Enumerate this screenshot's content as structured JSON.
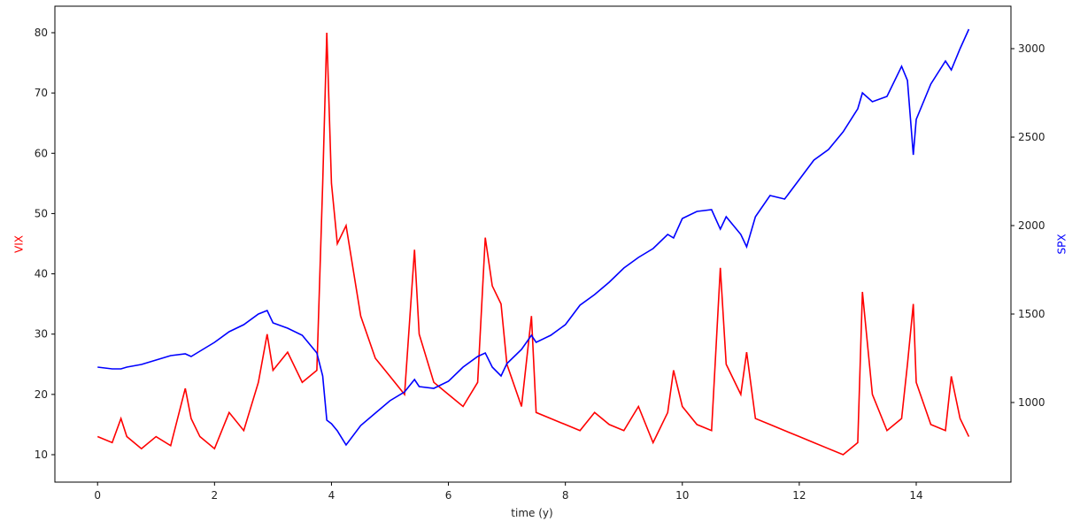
{
  "chart_data": {
    "type": "line",
    "xlabel": "time (y)",
    "ylabel": "VIX",
    "y2label": "SPX",
    "x": [
      0,
      0.25,
      0.4,
      0.5,
      0.75,
      1,
      1.25,
      1.5,
      1.6,
      1.75,
      2,
      2.25,
      2.5,
      2.75,
      2.9,
      3,
      3.25,
      3.5,
      3.75,
      3.85,
      3.92,
      4,
      4.1,
      4.25,
      4.5,
      4.75,
      5,
      5.25,
      5.42,
      5.5,
      5.75,
      6,
      6.25,
      6.5,
      6.63,
      6.75,
      6.9,
      7,
      7.25,
      7.42,
      7.5,
      7.75,
      8,
      8.25,
      8.5,
      8.75,
      9,
      9.25,
      9.5,
      9.75,
      9.85,
      10,
      10.25,
      10.5,
      10.65,
      10.75,
      11,
      11.1,
      11.25,
      11.5,
      11.75,
      12,
      12.25,
      12.5,
      12.75,
      13,
      13.08,
      13.25,
      13.5,
      13.75,
      13.85,
      13.95,
      14,
      14.25,
      14.5,
      14.6,
      14.75,
      14.9
    ],
    "series": [
      {
        "name": "VIX",
        "color": "#ff0000",
        "axis": "y",
        "values": [
          13,
          12,
          16,
          13,
          11,
          13,
          11.5,
          21,
          16,
          13,
          11,
          17,
          14,
          22,
          30,
          24,
          27,
          22,
          24,
          55,
          80,
          55,
          45,
          48,
          33,
          26,
          23,
          20,
          44,
          30,
          22,
          20,
          18,
          22,
          46,
          38,
          35,
          25,
          18,
          33,
          17,
          16,
          15,
          14,
          17,
          15,
          14,
          18,
          12,
          17,
          24,
          18,
          15,
          14,
          41,
          25,
          20,
          27,
          16,
          15,
          14,
          13,
          12,
          11,
          10,
          12,
          37,
          20,
          14,
          16,
          25,
          35,
          22,
          15,
          14,
          23,
          16,
          13
        ]
      },
      {
        "name": "SPX",
        "color": "#0000ff",
        "axis": "y2",
        "values": [
          1200,
          1190,
          1190,
          1200,
          1215,
          1240,
          1265,
          1275,
          1260,
          1290,
          1340,
          1400,
          1440,
          1500,
          1520,
          1450,
          1420,
          1380,
          1280,
          1150,
          900,
          880,
          840,
          760,
          870,
          940,
          1010,
          1060,
          1130,
          1090,
          1080,
          1120,
          1200,
          1260,
          1280,
          1200,
          1150,
          1220,
          1300,
          1380,
          1340,
          1380,
          1440,
          1550,
          1610,
          1680,
          1760,
          1820,
          1870,
          1950,
          1930,
          2040,
          2080,
          2090,
          1980,
          2050,
          1950,
          1880,
          2050,
          2170,
          2150,
          2260,
          2370,
          2430,
          2530,
          2660,
          2750,
          2700,
          2730,
          2900,
          2820,
          2400,
          2600,
          2800,
          2930,
          2880,
          3000,
          3110
        ]
      }
    ],
    "xlim": [
      -0.73,
      15.62
    ],
    "xticks": [
      0,
      2,
      4,
      6,
      8,
      10,
      12,
      14
    ],
    "ylim": [
      5.45,
      84.4
    ],
    "yticks": [
      10,
      20,
      30,
      40,
      50,
      60,
      70,
      80
    ],
    "y2lim": [
      550,
      3240
    ],
    "y2ticks": [
      1000,
      1500,
      2000,
      2500,
      3000
    ]
  }
}
